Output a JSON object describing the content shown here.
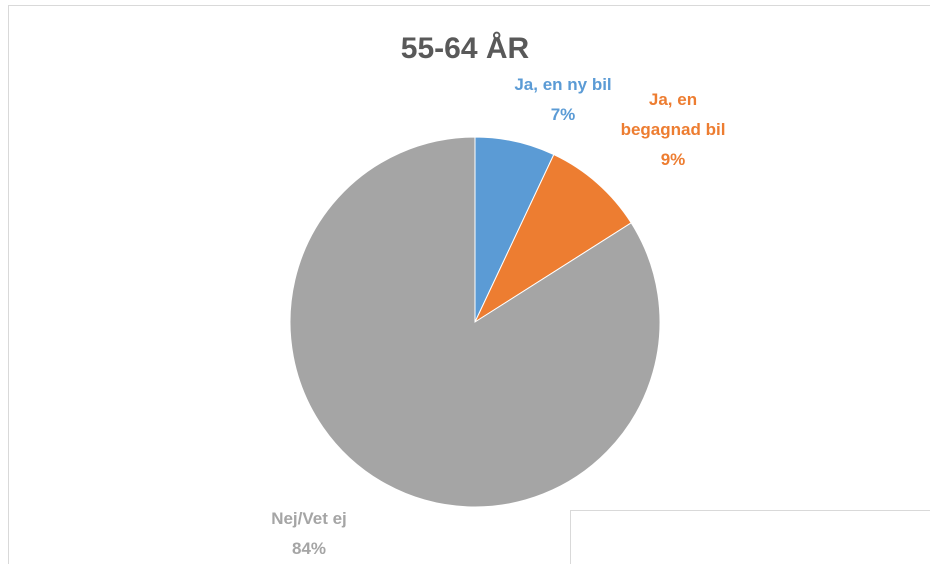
{
  "chart_data": {
    "type": "pie",
    "title": "55-64 ÅR",
    "categories": [
      "Ja, en ny bil",
      "Ja, en begagnad bil",
      "Nej/Vet ej"
    ],
    "values": [
      7,
      9,
      84
    ],
    "value_labels": [
      "7%",
      "9%",
      "84%"
    ],
    "colors": [
      "#5b9bd5",
      "#ed7d31",
      "#a5a5a5"
    ]
  }
}
